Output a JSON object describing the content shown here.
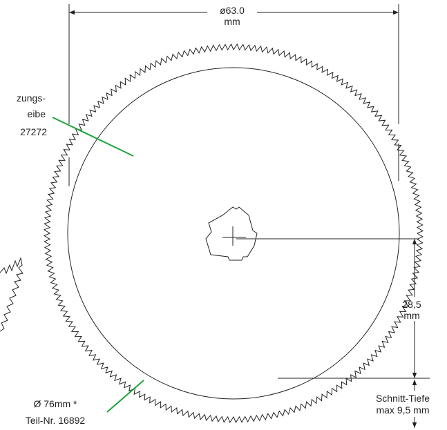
{
  "labels": {
    "top_dim_value": "ø63.0",
    "top_dim_unit": "mm",
    "insert_name_line1": "zungs-",
    "insert_name_line2": "eibe",
    "insert_part_no": "27272",
    "depth_value": "28,5",
    "depth_unit": "mm",
    "cut_depth_line1": "Schnitt-Tiefe",
    "cut_depth_line2": "max 9,5 mm",
    "blade_diameter": "Ø 76mm *",
    "blade_part_no": "Teil-Nr. 16892"
  },
  "colors": {
    "ink": "#222222",
    "leader_green": "#1aa33a",
    "background": "#ffffff"
  }
}
